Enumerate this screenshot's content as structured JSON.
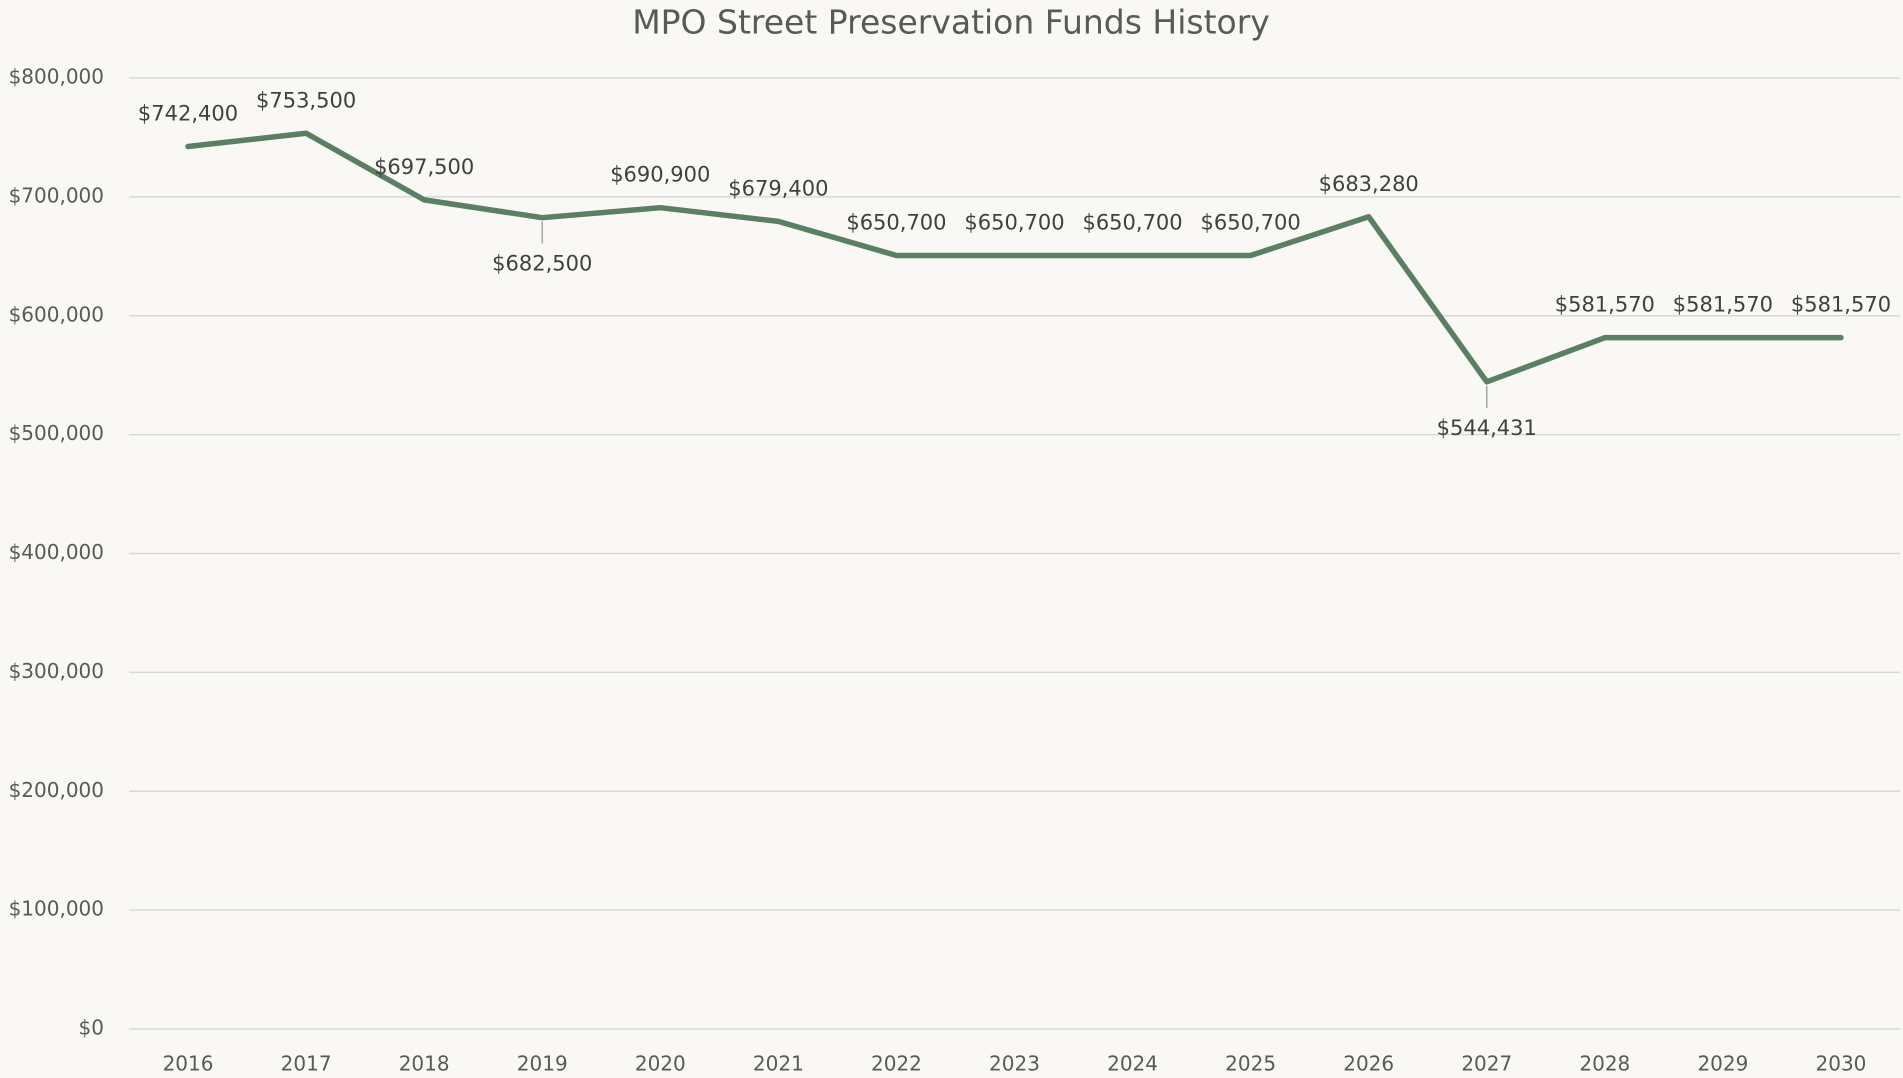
{
  "chart_data": {
    "type": "line",
    "title": "MPO Street Preservation Funds History",
    "categories": [
      "2016",
      "2017",
      "2018",
      "2019",
      "2020",
      "2021",
      "2022",
      "2023",
      "2024",
      "2025",
      "2026",
      "2027",
      "2028",
      "2029",
      "2030"
    ],
    "series": [
      {
        "name": "MPO Street Preservation Funds",
        "color": "#5b7f62",
        "values": [
          742400,
          753500,
          697500,
          682500,
          690900,
          679400,
          650700,
          650700,
          650700,
          650700,
          683280,
          544431,
          581570,
          581570,
          581570
        ],
        "value_labels": [
          "$742,400",
          "$753,500",
          "$697,500",
          "$682,500",
          "$690,900",
          "$679,400",
          "$650,700",
          "$650,700",
          "$650,700",
          "$650,700",
          "$683,280",
          "$544,431",
          "$581,570",
          "$581,570",
          "$581,570"
        ]
      }
    ],
    "ylim": [
      0,
      800000
    ],
    "yticks": [
      {
        "value": 0,
        "label": "$0"
      },
      {
        "value": 100000,
        "label": "$100,000"
      },
      {
        "value": 200000,
        "label": "$200,000"
      },
      {
        "value": 300000,
        "label": "$300,000"
      },
      {
        "value": 400000,
        "label": "$400,000"
      },
      {
        "value": 500000,
        "label": "$500,000"
      },
      {
        "value": 600000,
        "label": "$600,000"
      },
      {
        "value": 700000,
        "label": "$700,000"
      },
      {
        "value": 800000,
        "label": "$800,000"
      }
    ],
    "grid": true
  }
}
